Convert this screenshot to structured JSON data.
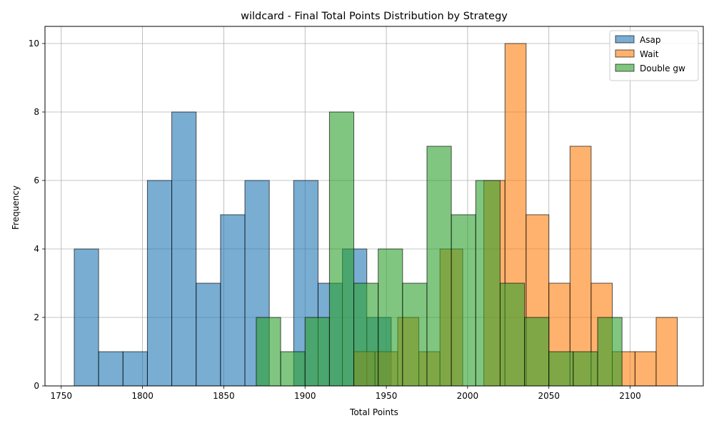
{
  "chart_data": {
    "type": "bar",
    "title": "wildcard - Final Total Points Distribution by Strategy",
    "xlabel": "Total Points",
    "ylabel": "Frequency",
    "xlim": [
      1740,
      2145
    ],
    "ylim": [
      0,
      10.5
    ],
    "xticks": [
      1750,
      1800,
      1850,
      1900,
      1950,
      2000,
      2050,
      2100
    ],
    "yticks": [
      0,
      2,
      4,
      6,
      8,
      10
    ],
    "grid": true,
    "legend_position": "top-right",
    "series": [
      {
        "name": "Asap",
        "color": "#1f77b4",
        "bins": [
          {
            "x0": 1758,
            "x1": 1773,
            "count": 4
          },
          {
            "x0": 1773,
            "x1": 1788,
            "count": 1
          },
          {
            "x0": 1788,
            "x1": 1803,
            "count": 1
          },
          {
            "x0": 1803,
            "x1": 1818,
            "count": 6
          },
          {
            "x0": 1818,
            "x1": 1833,
            "count": 8
          },
          {
            "x0": 1833,
            "x1": 1848,
            "count": 3
          },
          {
            "x0": 1848,
            "x1": 1863,
            "count": 5
          },
          {
            "x0": 1863,
            "x1": 1878,
            "count": 6
          },
          {
            "x0": 1878,
            "x1": 1893,
            "count": 0
          },
          {
            "x0": 1893,
            "x1": 1908,
            "count": 6
          },
          {
            "x0": 1908,
            "x1": 1923,
            "count": 3
          },
          {
            "x0": 1923,
            "x1": 1938,
            "count": 4
          },
          {
            "x0": 1938,
            "x1": 1953,
            "count": 2
          }
        ]
      },
      {
        "name": "Wait",
        "color": "#ff7f0e",
        "bins": [
          {
            "x0": 1930,
            "x1": 1943,
            "count": 1
          },
          {
            "x0": 1943,
            "x1": 1957,
            "count": 1
          },
          {
            "x0": 1957,
            "x1": 1970,
            "count": 2
          },
          {
            "x0": 1970,
            "x1": 1983,
            "count": 1
          },
          {
            "x0": 1983,
            "x1": 1997,
            "count": 4
          },
          {
            "x0": 1997,
            "x1": 2010,
            "count": 0
          },
          {
            "x0": 2010,
            "x1": 2023,
            "count": 6
          },
          {
            "x0": 2023,
            "x1": 2036,
            "count": 10
          },
          {
            "x0": 2036,
            "x1": 2050,
            "count": 5
          },
          {
            "x0": 2050,
            "x1": 2063,
            "count": 3
          },
          {
            "x0": 2063,
            "x1": 2076,
            "count": 7
          },
          {
            "x0": 2076,
            "x1": 2089,
            "count": 3
          },
          {
            "x0": 2089,
            "x1": 2103,
            "count": 1
          },
          {
            "x0": 2103,
            "x1": 2116,
            "count": 1
          },
          {
            "x0": 2116,
            "x1": 2129,
            "count": 2
          }
        ]
      },
      {
        "name": "Double gw",
        "color": "#2ca02c",
        "bins": [
          {
            "x0": 1870,
            "x1": 1885,
            "count": 2
          },
          {
            "x0": 1885,
            "x1": 1900,
            "count": 1
          },
          {
            "x0": 1900,
            "x1": 1915,
            "count": 2
          },
          {
            "x0": 1915,
            "x1": 1930,
            "count": 8
          },
          {
            "x0": 1930,
            "x1": 1945,
            "count": 3
          },
          {
            "x0": 1945,
            "x1": 1960,
            "count": 4
          },
          {
            "x0": 1960,
            "x1": 1975,
            "count": 3
          },
          {
            "x0": 1975,
            "x1": 1990,
            "count": 7
          },
          {
            "x0": 1990,
            "x1": 2005,
            "count": 5
          },
          {
            "x0": 2005,
            "x1": 2020,
            "count": 6
          },
          {
            "x0": 2020,
            "x1": 2035,
            "count": 3
          },
          {
            "x0": 2035,
            "x1": 2050,
            "count": 2
          },
          {
            "x0": 2050,
            "x1": 2065,
            "count": 1
          },
          {
            "x0": 2065,
            "x1": 2080,
            "count": 1
          },
          {
            "x0": 2080,
            "x1": 2095,
            "count": 2
          }
        ]
      }
    ]
  }
}
